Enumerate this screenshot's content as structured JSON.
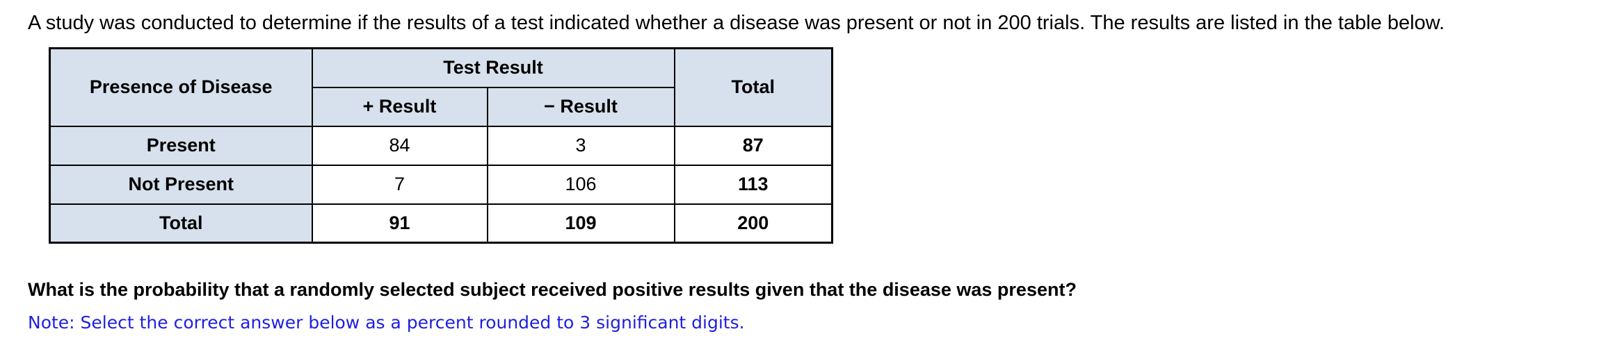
{
  "intro": "A study was conducted to determine if the results of a test indicated whether a disease was present or not in 200 trials. The results are listed in the table below.",
  "table": {
    "corner_header": "Presence of Disease",
    "group_header": "Test Result",
    "col_headers": [
      "+ Result",
      "− Result"
    ],
    "total_header": "Total",
    "rows": [
      {
        "label": "Present",
        "pos": "84",
        "neg": "3",
        "total": "87"
      },
      {
        "label": "Not Present",
        "pos": "7",
        "neg": "106",
        "total": "113"
      },
      {
        "label": "Total",
        "pos": "91",
        "neg": "109",
        "total": "200"
      }
    ]
  },
  "question": "What is the probability that a randomly selected subject received positive results given that the disease was present?",
  "note": "Note: Select the correct answer below as a percent rounded to 3 significant digits.",
  "colors": {
    "header_bg": "#d7e1ed",
    "note_blue": "#1f1fe0",
    "border": "#000000"
  }
}
